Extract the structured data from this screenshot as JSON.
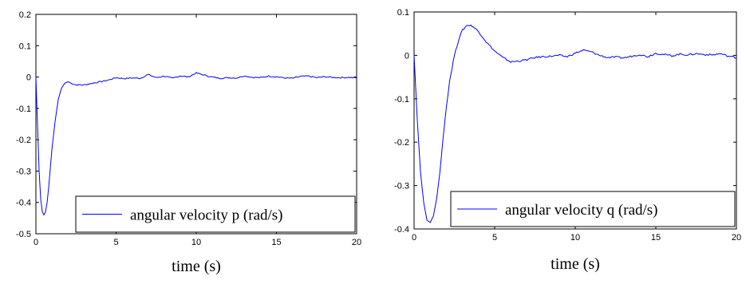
{
  "colors": {
    "line": "#0000ff",
    "axes": "#000000",
    "background": "#ffffff"
  },
  "chart_data": [
    {
      "type": "line",
      "xlabel": "time (s)",
      "ylabel": "",
      "xlim": [
        0,
        20
      ],
      "ylim": [
        -0.5,
        0.2
      ],
      "x_ticks": [
        0,
        5,
        10,
        15,
        20
      ],
      "y_ticks": [
        -0.5,
        -0.4,
        -0.3,
        -0.2,
        -0.1,
        0,
        0.1,
        0.2
      ],
      "x_tick_labels": [
        "0",
        "5",
        "10",
        "15",
        "20"
      ],
      "y_tick_labels": [
        "-0.5",
        "-0.4",
        "-0.3",
        "-0.2",
        "-0.1",
        "0",
        "0.1",
        "0.2"
      ],
      "grid": false,
      "legend_position": "bottom-right",
      "series": [
        {
          "name": "angular velocity p (rad/s)",
          "x": [
            0,
            0.1,
            0.2,
            0.3,
            0.4,
            0.5,
            0.6,
            0.7,
            0.8,
            0.9,
            1.0,
            1.2,
            1.4,
            1.6,
            1.8,
            2.0,
            2.2,
            2.5,
            3.0,
            3.5,
            4.0,
            4.5,
            5.0,
            5.5,
            6.0,
            6.5,
            7.0,
            7.5,
            8.0,
            8.5,
            9.0,
            9.5,
            10.0,
            10.5,
            11.0,
            11.5,
            12.0,
            12.5,
            13.0,
            13.5,
            14.0,
            14.5,
            15.0,
            15.5,
            16.0,
            16.5,
            17.0,
            17.5,
            18.0,
            18.5,
            19.0,
            19.5,
            20.0
          ],
          "y": [
            0,
            -0.15,
            -0.3,
            -0.39,
            -0.43,
            -0.44,
            -0.43,
            -0.4,
            -0.35,
            -0.29,
            -0.23,
            -0.14,
            -0.07,
            -0.035,
            -0.02,
            -0.015,
            -0.02,
            -0.025,
            -0.025,
            -0.02,
            -0.015,
            -0.01,
            -0.002,
            -0.005,
            -0.003,
            -0.004,
            0.008,
            -0.002,
            0.003,
            -0.004,
            0.004,
            0.0,
            0.013,
            0.006,
            0.0,
            -0.004,
            -0.002,
            -0.003,
            0.004,
            -0.001,
            -0.002,
            0.003,
            0.001,
            -0.003,
            -0.004,
            0.002,
            0.003,
            -0.002,
            0.001,
            -0.001,
            -0.002,
            -0.001,
            -0.003
          ]
        }
      ]
    },
    {
      "type": "line",
      "xlabel": "time (s)",
      "ylabel": "",
      "xlim": [
        0,
        20
      ],
      "ylim": [
        -0.4,
        0.1
      ],
      "x_ticks": [
        0,
        5,
        10,
        15,
        20
      ],
      "y_ticks": [
        -0.4,
        -0.3,
        -0.2,
        -0.1,
        0,
        0.1
      ],
      "x_tick_labels": [
        "0",
        "5",
        "10",
        "15",
        "20"
      ],
      "y_tick_labels": [
        "-0.4",
        "-0.3",
        "-0.2",
        "-0.1",
        "0",
        "0.1"
      ],
      "grid": false,
      "legend_position": "bottom-right",
      "series": [
        {
          "name": "angular velocity q (rad/s)",
          "x": [
            0,
            0.2,
            0.4,
            0.6,
            0.8,
            1.0,
            1.2,
            1.4,
            1.6,
            1.8,
            2.0,
            2.2,
            2.5,
            2.8,
            3.0,
            3.3,
            3.6,
            4.0,
            4.5,
            5.0,
            5.5,
            6.0,
            6.5,
            7.0,
            7.5,
            8.0,
            8.5,
            9.0,
            9.5,
            10.0,
            10.5,
            11.0,
            11.5,
            12.0,
            12.5,
            13.0,
            13.5,
            14.0,
            14.5,
            15.0,
            15.5,
            16.0,
            16.5,
            17.0,
            17.5,
            18.0,
            18.5,
            19.0,
            19.5,
            20.0
          ],
          "y": [
            0,
            -0.15,
            -0.27,
            -0.34,
            -0.38,
            -0.385,
            -0.37,
            -0.33,
            -0.27,
            -0.19,
            -0.12,
            -0.06,
            0.0,
            0.04,
            0.058,
            0.07,
            0.068,
            0.055,
            0.03,
            0.01,
            -0.005,
            -0.015,
            -0.013,
            -0.01,
            -0.005,
            -0.003,
            -0.002,
            0.0,
            -0.003,
            0.005,
            0.012,
            0.008,
            0.0,
            -0.005,
            -0.004,
            -0.006,
            -0.002,
            0.002,
            -0.003,
            0.005,
            0.002,
            -0.001,
            0.003,
            0.001,
            0.004,
            0.002,
            0.001,
            0.004,
            -0.002,
            -0.005
          ]
        }
      ]
    }
  ]
}
